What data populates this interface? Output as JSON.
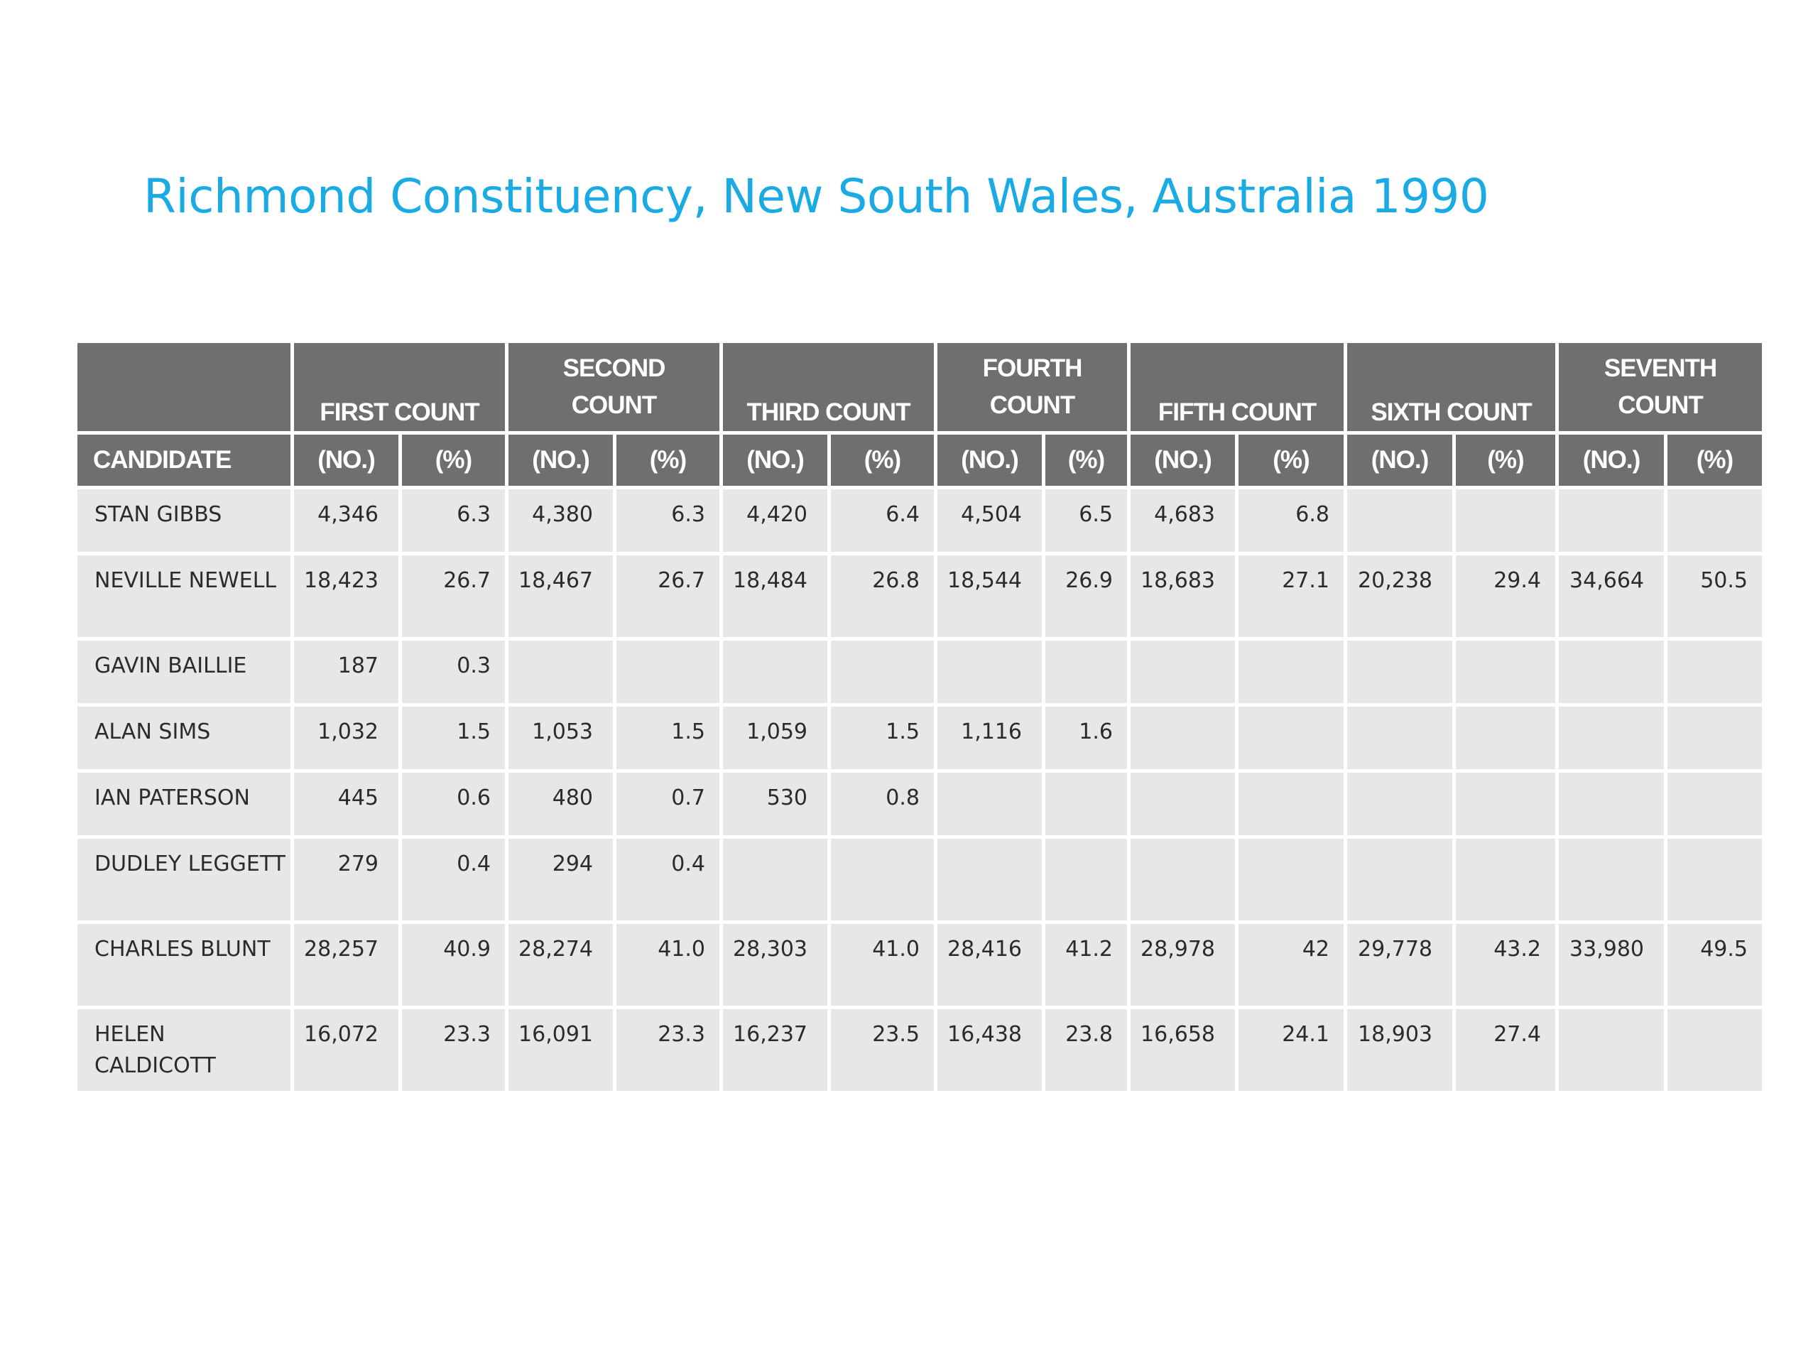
{
  "title": "Richmond Constituency, New South Wales, Australia 1990",
  "header": {
    "groups": [
      "FIRST COUNT",
      "SECOND COUNT",
      "THIRD COUNT",
      "FOURTH COUNT",
      "FIFTH COUNT",
      "SIXTH COUNT",
      "SEVENTH COUNT"
    ],
    "candidate_label": "CANDIDATE",
    "no_label": "(NO.)",
    "pct_label": "(%)"
  },
  "rows": [
    {
      "name": "STAN GIBBS",
      "cells": [
        "4,346",
        "6.3",
        "4,380",
        "6.3",
        "4,420",
        "6.4",
        "4,504",
        "6.5",
        "4,683",
        "6.8",
        "",
        "",
        "",
        ""
      ]
    },
    {
      "name": "NEVILLE NEWELL",
      "cells": [
        "18,423",
        "26.7",
        "18,467",
        "26.7",
        "18,484",
        "26.8",
        "18,544",
        "26.9",
        "18,683",
        "27.1",
        "20,238",
        "29.4",
        "34,664",
        "50.5"
      ]
    },
    {
      "name": "GAVIN BAILLIE",
      "cells": [
        "187",
        "0.3",
        "",
        "",
        "",
        "",
        "",
        "",
        "",
        "",
        "",
        "",
        "",
        ""
      ]
    },
    {
      "name": "ALAN SIMS",
      "cells": [
        "1,032",
        "1.5",
        "1,053",
        "1.5",
        "1,059",
        "1.5",
        "1,116",
        "1.6",
        "",
        "",
        "",
        "",
        "",
        ""
      ]
    },
    {
      "name": "IAN PATERSON",
      "cells": [
        "445",
        "0.6",
        "480",
        "0.7",
        "530",
        "0.8",
        "",
        "",
        "",
        "",
        "",
        "",
        "",
        ""
      ]
    },
    {
      "name": "DUDLEY LEGGETT",
      "cells": [
        "279",
        "0.4",
        "294",
        "0.4",
        "",
        "",
        "",
        "",
        "",
        "",
        "",
        "",
        "",
        ""
      ]
    },
    {
      "name": "CHARLES BLUNT",
      "cells": [
        "28,257",
        "40.9",
        "28,274",
        "41.0",
        "28,303",
        "41.0",
        "28,416",
        "41.2",
        "28,978",
        "42",
        "29,778",
        "43.2",
        "33,980",
        "49.5"
      ]
    },
    {
      "name": "HELEN CALDICOTT",
      "cells": [
        "16,072",
        "23.3",
        "16,091",
        "23.3",
        "16,237",
        "23.5",
        "16,438",
        "23.8",
        "16,658",
        "24.1",
        "18,903",
        "27.4",
        "",
        ""
      ]
    }
  ]
}
